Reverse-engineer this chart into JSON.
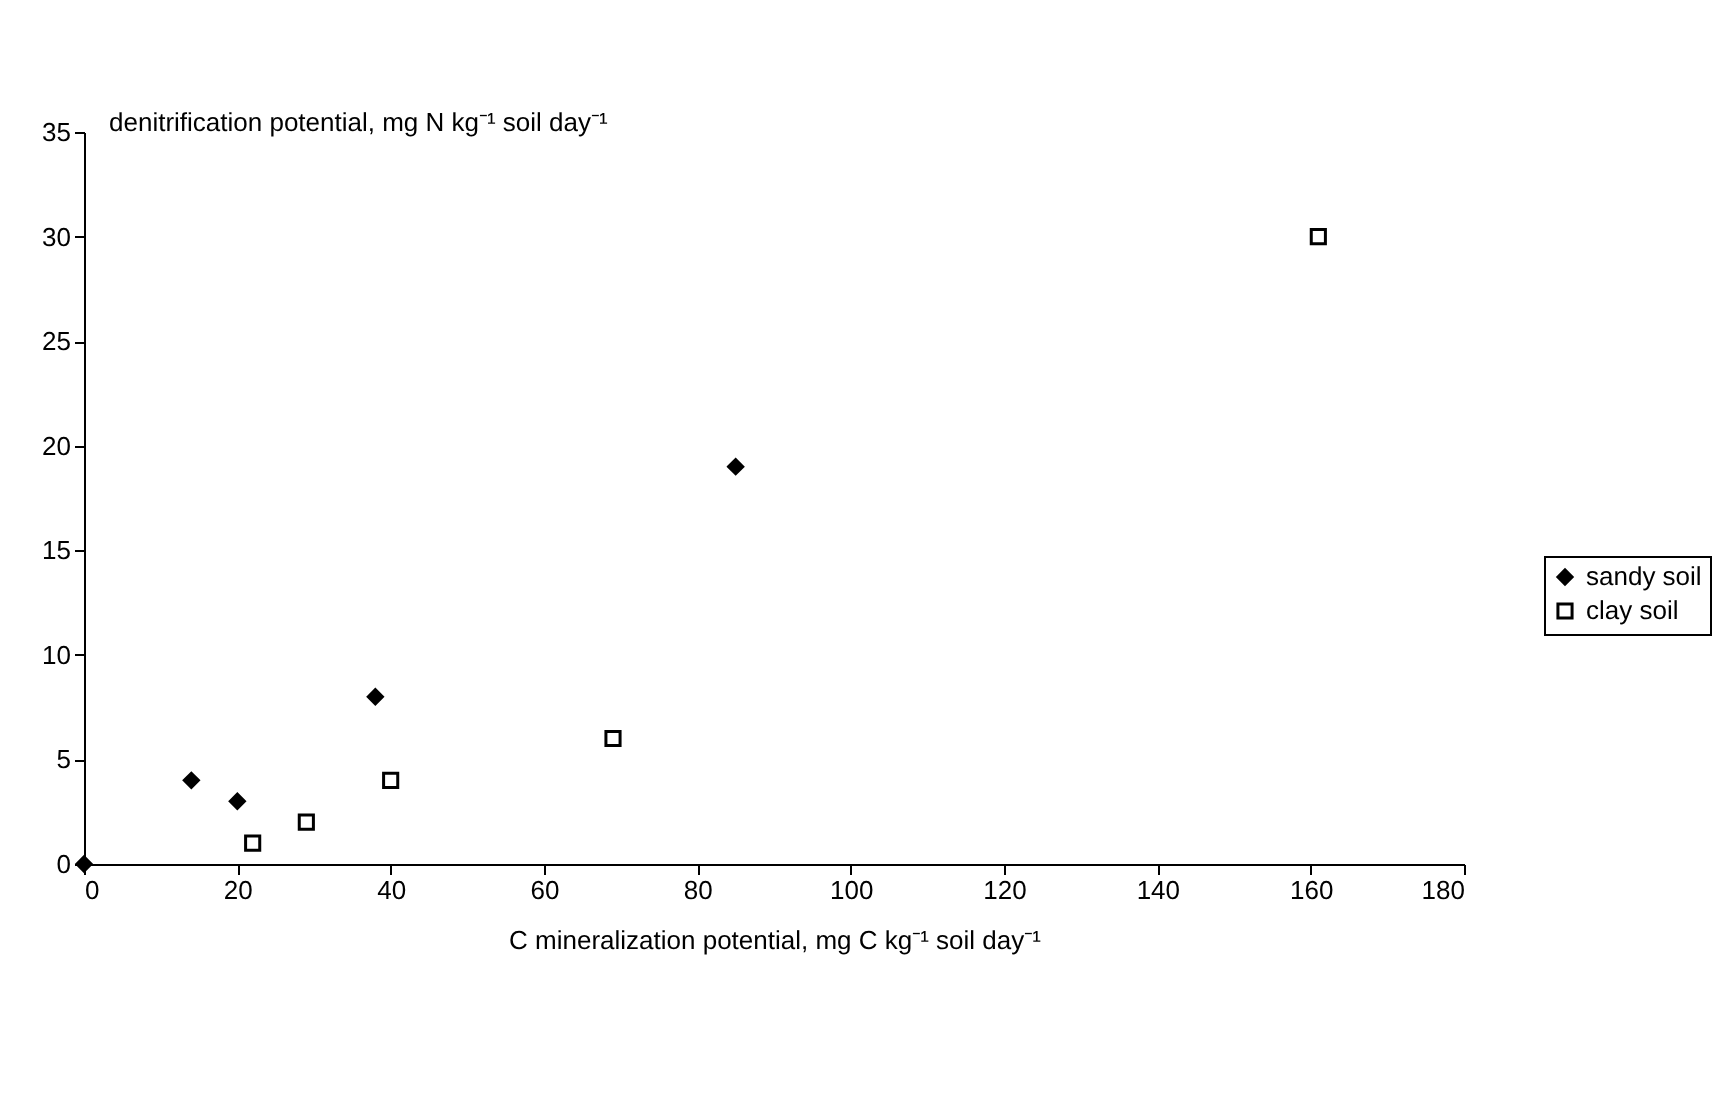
{
  "chart_data": {
    "type": "scatter",
    "xlabel": "C mineralization potential, mg C kg⁻¹ soil day⁻¹",
    "ylabel": "denitrification potential, mg N kg⁻¹ soil day⁻¹",
    "xlim": [
      0,
      180
    ],
    "xticks": [
      0,
      20,
      40,
      60,
      80,
      100,
      120,
      140,
      160,
      180
    ],
    "ylim": [
      0,
      35
    ],
    "yticks": [
      0,
      5,
      10,
      15,
      20,
      25,
      30,
      35
    ],
    "grid": false,
    "legend": "right",
    "series": [
      {
        "name": "sandy soil",
        "color": "#000000",
        "marker": "diamond",
        "x": [
          0,
          14,
          20,
          38,
          85
        ],
        "values": [
          0,
          4,
          3,
          8,
          19
        ]
      },
      {
        "name": "clay soil",
        "color": "#000000",
        "marker": "square",
        "x": [
          22,
          29,
          40,
          69,
          161
        ],
        "values": [
          1,
          2,
          4,
          6,
          30
        ]
      }
    ]
  }
}
